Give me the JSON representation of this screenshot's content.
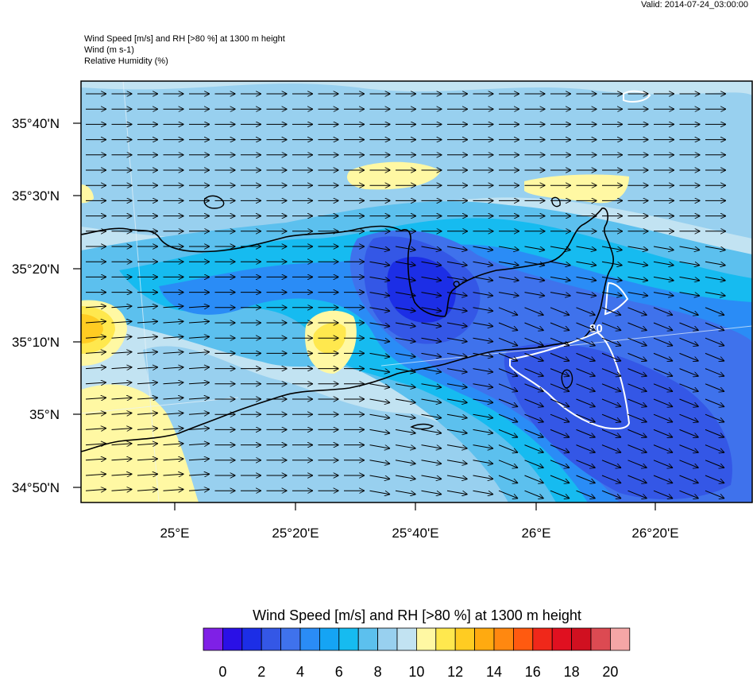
{
  "header": {
    "valid": "Valid: 2014-07-24_03:00:00",
    "line1": "Wind Speed [m/s] and RH [>80 %] at 1300 m height",
    "line2": "Wind   (m s-1)",
    "line3": "Relative Humidity   (%)"
  },
  "colorbar": {
    "title": "Wind Speed [m/s] and RH [>80 %] at 1300 m height",
    "colors": [
      "#7f20e6",
      "#2a10e6",
      "#1c2ee6",
      "#3457e6",
      "#3f72ec",
      "#2a8cf6",
      "#15a4f4",
      "#16bbf0",
      "#5cc0ee",
      "#98d0ef",
      "#c2e3f2",
      "#fff8a3",
      "#ffe84e",
      "#ffcc22",
      "#ffaa10",
      "#ff8810",
      "#ff5a10",
      "#f0281a",
      "#e01020",
      "#d01020",
      "#dc4a52",
      "#f4a6a6"
    ],
    "labels": [
      "0",
      "2",
      "4",
      "6",
      "8",
      "10",
      "12",
      "14",
      "16",
      "18",
      "20"
    ]
  },
  "map": {
    "lat_labels": [
      "35°40'N",
      "35°30'N",
      "35°20'N",
      "35°10'N",
      "35°N",
      "34°50'N"
    ],
    "lon_labels": [
      "25°E",
      "25°20'E",
      "25°40'E",
      "26°E",
      "26°20'E"
    ],
    "contour_label": "80",
    "colors": {
      "bg": "#c2e3f2",
      "c9": "#98d0ef",
      "c8": "#5cc0ee",
      "c7": "#16bbf0",
      "c6": "#2a8cf6",
      "c5": "#3f72ec",
      "c4": "#3457e6",
      "c3": "#1c2ee6",
      "y1": "#fff8a3",
      "y2": "#ffe84e",
      "y3": "#ffcc22"
    }
  },
  "chart_data": {
    "type": "heatmap",
    "title": "Wind Speed [m/s] and RH [>80 %] at 1300 m height",
    "subtitles": [
      "Wind   (m s-1)",
      "Relative Humidity   (%)"
    ],
    "valid_time": "2014-07-24_03:00:00",
    "x_ticks": [
      "25°E",
      "25°20'E",
      "25°40'E",
      "26°E",
      "26°20'E"
    ],
    "y_ticks": [
      "35°40'N",
      "35°30'N",
      "35°20'N",
      "35°10'N",
      "35°N",
      "34°50'N"
    ],
    "xlim": [
      "24°44'E",
      "26°35'E"
    ],
    "ylim": [
      "34°48'N",
      "35°46'N"
    ],
    "colorbar_range": [
      0,
      21
    ],
    "colorbar_step": 1,
    "wind_direction": "mostly from the west (eastward arrows)",
    "rh_contour_level": 80,
    "regions": [
      {
        "area": "around 25°40'E, 35°18'N",
        "wind_speed_range": [
          2,
          4
        ]
      },
      {
        "area": "SE sector around 26°05'-26°20'E, 35°00'N",
        "wind_speed_range": [
          3,
          5
        ]
      },
      {
        "area": "W edge around 24°45'E, 35°12'N",
        "wind_speed_range": [
          12,
          14
        ]
      },
      {
        "area": "around 25°27'E, 35°11'N",
        "wind_speed_range": [
          11,
          13
        ]
      },
      {
        "area": "SW corner",
        "wind_speed_range": [
          10,
          11
        ]
      },
      {
        "area": "N around 25°37'E, 35°33'N",
        "wind_speed_range": [
          10,
          11
        ]
      },
      {
        "area": "NE around 26°10'E, 35°31'N",
        "wind_speed_range": [
          10,
          11
        ]
      }
    ]
  }
}
